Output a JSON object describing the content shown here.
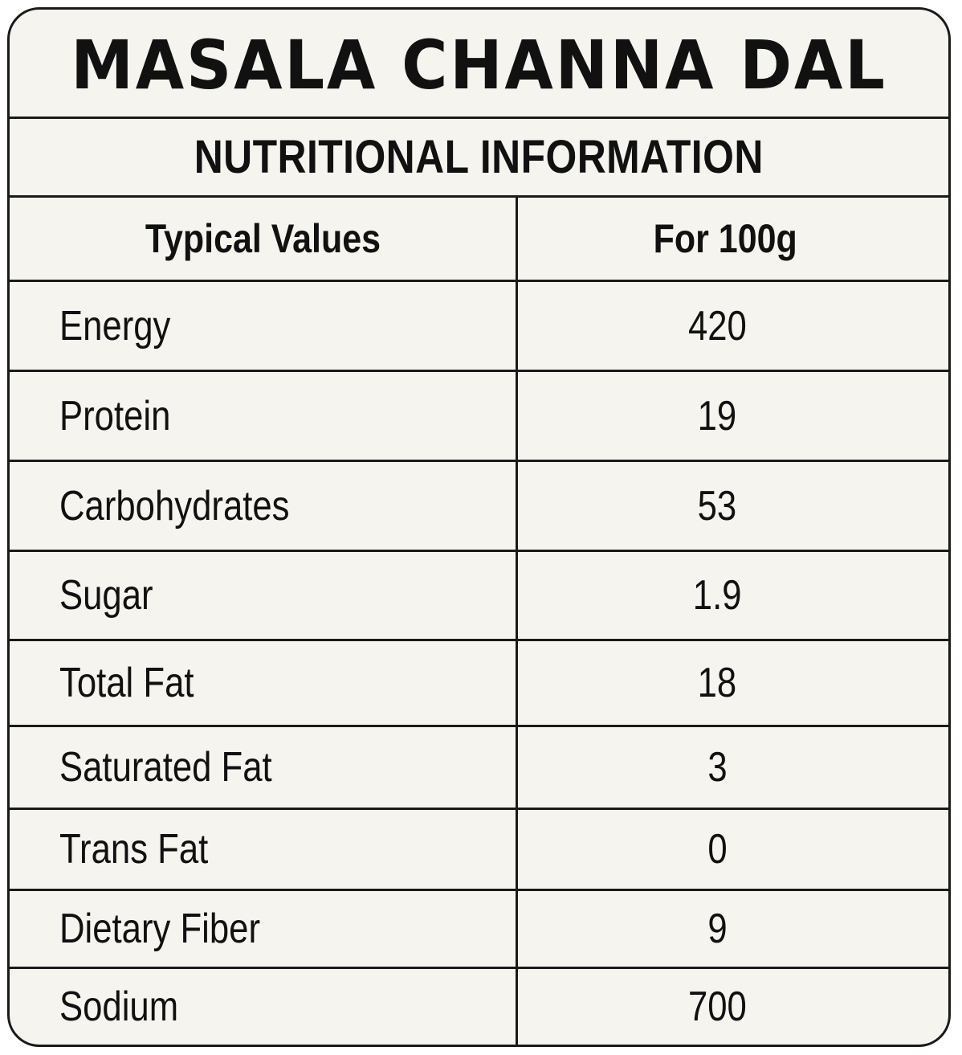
{
  "label": {
    "title": "MASALA CHANNA DAL",
    "subtitle": "NUTRITIONAL INFORMATION",
    "header": {
      "left": "Typical Values",
      "right": "For 100g"
    },
    "rows": [
      {
        "name": "Energy",
        "value": "420"
      },
      {
        "name": "Protein",
        "value": "19"
      },
      {
        "name": "Carbohydrates",
        "value": "53"
      },
      {
        "name": "Sugar",
        "value": "1.9"
      },
      {
        "name": "Total Fat",
        "value": "18"
      },
      {
        "name": "Saturated Fat",
        "value": "3"
      },
      {
        "name": "Trans Fat",
        "value": "0"
      },
      {
        "name": "Dietary Fiber",
        "value": "9"
      },
      {
        "name": "Sodium",
        "value": "700"
      }
    ]
  }
}
